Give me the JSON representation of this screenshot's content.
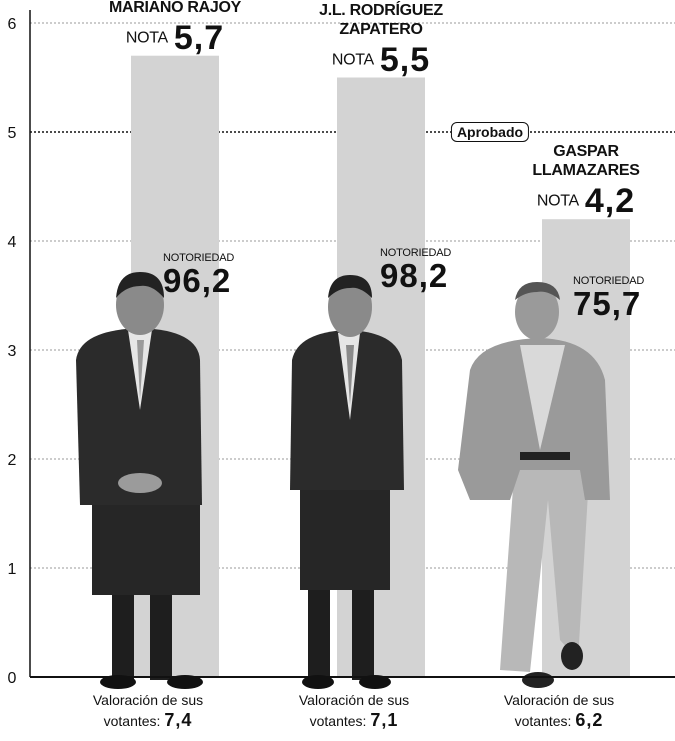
{
  "chart_data": {
    "type": "bar",
    "categories": [
      "MARIANO RAJOY",
      "J.L. RODRÍGUEZ ZAPATERO",
      "GASPAR LLAMAZARES"
    ],
    "values": [
      5.7,
      5.5,
      4.2
    ],
    "value_labels": [
      "5,7",
      "5,5",
      "4,2"
    ],
    "value_prefix": "NOTA",
    "color": "#d3d3d3",
    "ylim": [
      0,
      6
    ],
    "yticks": [
      0,
      1,
      2,
      3,
      4,
      5,
      6
    ],
    "grid": true,
    "threshold": {
      "value": 5,
      "label": "Aprobado"
    },
    "notoriedad": {
      "label": "NOTORIEDAD",
      "values": [
        96.2,
        98.2,
        75.7
      ],
      "value_labels": [
        "96,2",
        "98,2",
        "75,7"
      ]
    },
    "valoracion": {
      "label": "Valoración de sus votantes:",
      "values": [
        7.4,
        7.1,
        6.2
      ],
      "value_labels": [
        "7,4",
        "7,1",
        "6,2"
      ]
    }
  }
}
